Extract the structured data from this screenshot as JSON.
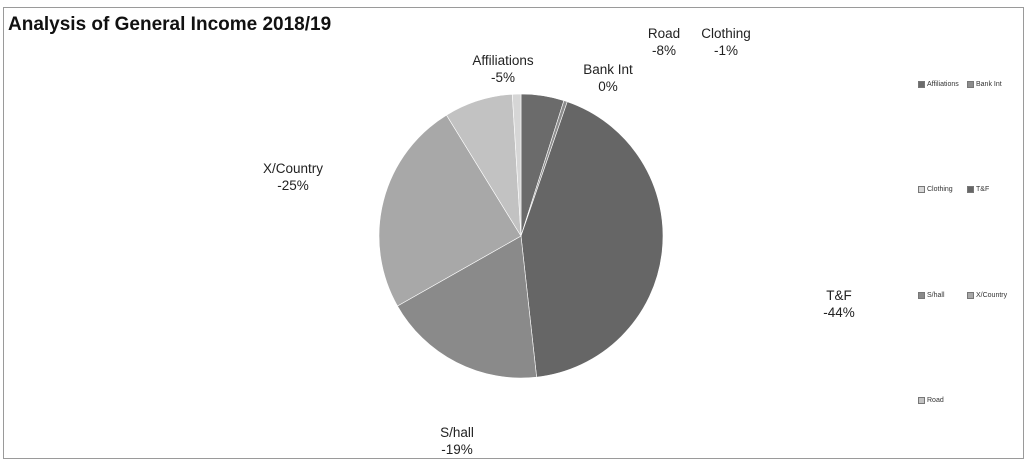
{
  "chart_data": {
    "type": "pie",
    "title": "Analysis of General Income 2018/19",
    "slices": [
      {
        "name": "Affiliations",
        "value": -5,
        "label": "-5%",
        "color": "#6b6b6b"
      },
      {
        "name": "Bank Int",
        "value": 0,
        "label": "0%",
        "color": "#8c8c8c"
      },
      {
        "name": "T&F",
        "value": -44,
        "label": "-44%",
        "color": "#666666"
      },
      {
        "name": "S/hall",
        "value": -19,
        "label": "-19%",
        "color": "#8a8a8a"
      },
      {
        "name": "X/Country",
        "value": -25,
        "label": "-25%",
        "color": "#a8a8a8"
      },
      {
        "name": "Road",
        "value": -8,
        "label": "-8%",
        "color": "#c2c2c2"
      },
      {
        "name": "Clothing",
        "value": -1,
        "label": "-1%",
        "color": "#d6d6d6"
      }
    ],
    "legend": [
      "Affiliations",
      "Bank Int",
      "Clothing",
      "T&F",
      "S/hall",
      "X/Country",
      "Road"
    ],
    "legend_position": "right"
  }
}
